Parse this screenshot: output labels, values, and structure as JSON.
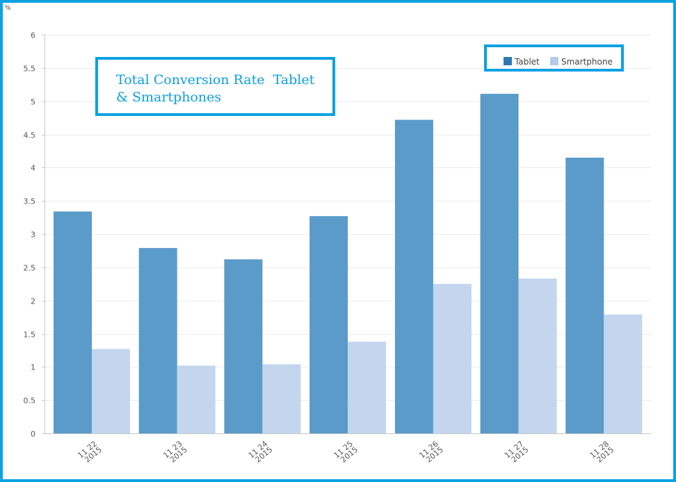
{
  "chart_data": {
    "type": "bar",
    "title": "Total Conversion Rate  Tablet & Smartphones",
    "ylabel": "%",
    "xlabel": "",
    "ylim": [
      0,
      6
    ],
    "yticks": [
      "0",
      "0.5",
      "1",
      "1.5",
      "2",
      "2.5",
      "3",
      "3.5",
      "4",
      "4.5",
      "5",
      "5.5",
      "6"
    ],
    "categories": [
      [
        "11 22",
        "2015"
      ],
      [
        "11 23",
        "2015"
      ],
      [
        "11 24",
        "2015"
      ],
      [
        "11 25",
        "2015"
      ],
      [
        "11 26",
        "2015"
      ],
      [
        "11 27",
        "2015"
      ],
      [
        "11 28",
        "2015"
      ]
    ],
    "series": [
      {
        "name": "Tablet",
        "color": "#5a9bc9",
        "legend_color": "#2e78b5",
        "values": [
          3.34,
          2.79,
          2.62,
          3.27,
          4.72,
          5.11,
          4.15
        ]
      },
      {
        "name": "Smartphone",
        "color": "#c3d6ee",
        "legend_color": "#b3cbe9",
        "values": [
          1.27,
          1.02,
          1.04,
          1.38,
          2.25,
          2.33,
          1.79
        ]
      }
    ],
    "grid": true,
    "legend_position": "top-right"
  }
}
